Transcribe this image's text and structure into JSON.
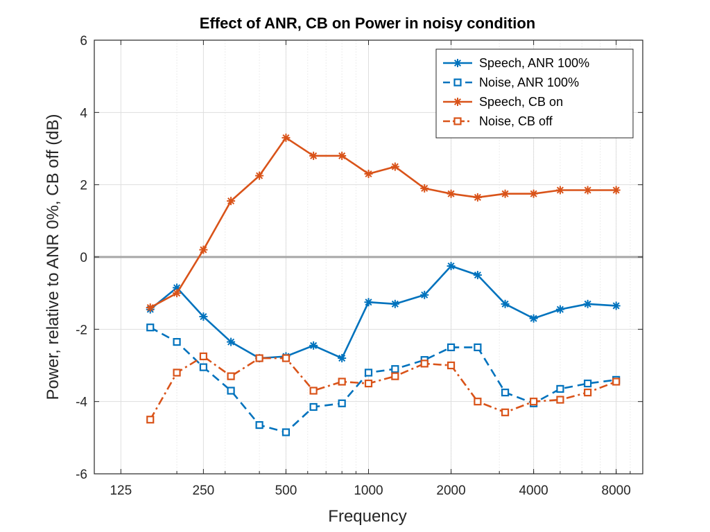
{
  "chart_data": {
    "type": "line",
    "title": "Effect of ANR, CB on Power in noisy condition",
    "xlabel": "Frequency",
    "ylabel": "Power, relative to ANR 0%, CB off (dB)",
    "x_scale": "log2",
    "xlim": [
      100,
      10000
    ],
    "ylim": [
      -6,
      6
    ],
    "x_ticks": [
      125,
      250,
      500,
      1000,
      2000,
      4000,
      8000
    ],
    "x_tick_labels": [
      "125",
      "250",
      "500",
      "1000",
      "2000",
      "4000",
      "8000"
    ],
    "y_ticks": [
      -6,
      -4,
      -2,
      0,
      2,
      4,
      6
    ],
    "y_tick_labels": [
      "-6",
      "-4",
      "-2",
      "0",
      "2",
      "4",
      "6"
    ],
    "grid": true,
    "reference_line": {
      "y": 0,
      "color": "#a6a6a6"
    },
    "legend_position": "top-right",
    "x": [
      160,
      200,
      250,
      315,
      400,
      500,
      630,
      800,
      1000,
      1250,
      1600,
      2000,
      2500,
      3150,
      4000,
      5000,
      6300,
      8000
    ],
    "series": [
      {
        "name": "Speech, ANR 100%",
        "color": "#0072bd",
        "line": "solid",
        "marker": "asterisk",
        "values": [
          -1.45,
          -0.85,
          -1.65,
          -2.35,
          -2.8,
          -2.75,
          -2.45,
          -2.8,
          -1.25,
          -1.3,
          -1.05,
          -0.25,
          -0.5,
          -1.3,
          -1.7,
          -1.45,
          -1.3,
          -1.35
        ]
      },
      {
        "name": "Noise, ANR 100%",
        "color": "#0072bd",
        "line": "dashed",
        "marker": "square",
        "values": [
          -1.95,
          -2.35,
          -3.05,
          -3.7,
          -4.65,
          -4.85,
          -4.15,
          -4.05,
          -3.2,
          -3.1,
          -2.85,
          -2.5,
          -2.5,
          -3.75,
          -4.05,
          -3.65,
          -3.5,
          -3.4
        ]
      },
      {
        "name": "Speech, CB on",
        "color": "#d95319",
        "line": "solid",
        "marker": "asterisk",
        "values": [
          -1.4,
          -1.0,
          0.2,
          1.55,
          2.25,
          3.3,
          2.8,
          2.8,
          2.3,
          2.5,
          1.9,
          1.75,
          1.65,
          1.75,
          1.75,
          1.85,
          1.85,
          1.85
        ]
      },
      {
        "name": "Noise, CB off",
        "color": "#d95319",
        "line": "dashdot",
        "marker": "square",
        "values": [
          -4.5,
          -3.2,
          -2.75,
          -3.3,
          -2.8,
          -2.8,
          -3.7,
          -3.45,
          -3.5,
          -3.3,
          -2.95,
          -3.0,
          -4.0,
          -4.3,
          -4.0,
          -3.95,
          -3.75,
          -3.45
        ]
      }
    ]
  }
}
